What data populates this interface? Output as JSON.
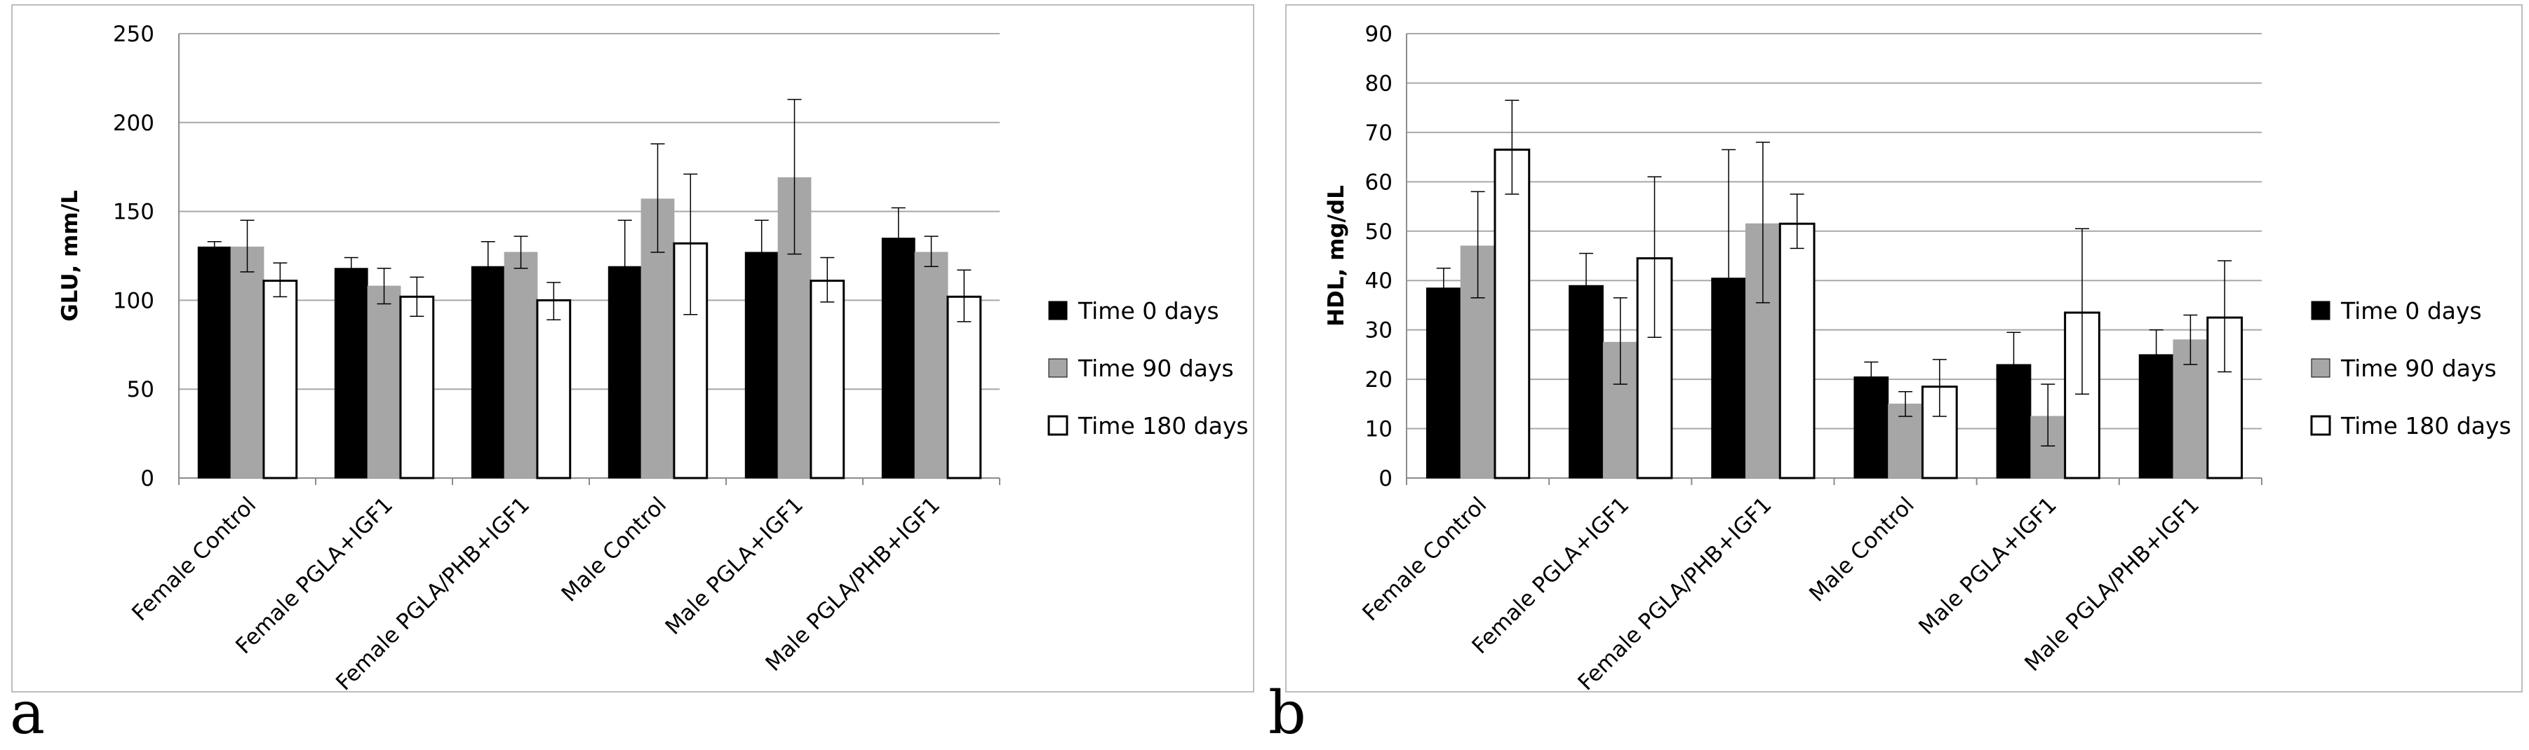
{
  "chart_data": [
    {
      "panel": "a",
      "type": "bar",
      "title": "",
      "xlabel": "",
      "ylabel": "GLU, mm/L",
      "ylim": [
        0,
        250
      ],
      "yticks": [
        0,
        50,
        100,
        150,
        200,
        250
      ],
      "grid": true,
      "legend_position": "right",
      "categories": [
        "Female Control",
        "Female PGLA+IGF1",
        "Female PGLA/PHB+IGF1",
        "Male Control",
        "Male PGLA+IGF1",
        "Male PGLA/PHB+IGF1"
      ],
      "series": [
        {
          "name": "Time 0 days",
          "color": "#000000",
          "values": [
            130,
            118,
            119,
            119,
            127,
            135
          ],
          "err_low": [
            127,
            112,
            106,
            94,
            110,
            120
          ],
          "err_high": [
            133,
            124,
            133,
            145,
            145,
            152
          ]
        },
        {
          "name": "Time 90 days",
          "color": "#a6a6a6",
          "values": [
            130,
            108,
            127,
            157,
            169,
            127
          ],
          "err_low": [
            116,
            98,
            118,
            127,
            126,
            119
          ],
          "err_high": [
            145,
            118,
            136,
            188,
            213,
            136
          ]
        },
        {
          "name": "Time 180 days",
          "color": "#ffffff",
          "values": [
            111,
            102,
            100,
            132,
            111,
            102
          ],
          "err_low": [
            102,
            91,
            89,
            92,
            99,
            88
          ],
          "err_high": [
            121,
            113,
            110,
            171,
            124,
            117
          ]
        }
      ]
    },
    {
      "panel": "b",
      "type": "bar",
      "title": "",
      "xlabel": "",
      "ylabel": "HDL, mg/dL",
      "ylim": [
        0,
        90
      ],
      "yticks": [
        0,
        10,
        20,
        30,
        40,
        50,
        60,
        70,
        80,
        90
      ],
      "grid": true,
      "legend_position": "right",
      "categories": [
        "Female Control",
        "Female PGLA+IGF1",
        "Female PGLA/PHB+IGF1",
        "Male Control",
        "Male PGLA+IGF1",
        "Male PGLA/PHB+IGF1"
      ],
      "series": [
        {
          "name": "Time 0 days",
          "color": "#000000",
          "values": [
            38.5,
            39,
            40.5,
            20.5,
            23,
            25
          ],
          "err_low": [
            34.5,
            32.5,
            15,
            18,
            17,
            21
          ],
          "err_high": [
            42.5,
            45.5,
            66.5,
            23.5,
            29.5,
            30
          ]
        },
        {
          "name": "Time 90 days",
          "color": "#a6a6a6",
          "values": [
            47,
            27.5,
            51.5,
            15,
            12.5,
            28
          ],
          "err_low": [
            36.5,
            19,
            35.5,
            12.5,
            6.5,
            23
          ],
          "err_high": [
            58,
            36.5,
            68,
            17.5,
            19,
            33
          ]
        },
        {
          "name": "Time 180 days",
          "color": "#ffffff",
          "values": [
            66.5,
            44.5,
            51.5,
            18.5,
            33.5,
            32.5
          ],
          "err_low": [
            57.5,
            28.5,
            46.5,
            12.5,
            17,
            21.5
          ],
          "err_high": [
            76.5,
            61,
            57.5,
            24,
            50.5,
            44
          ]
        }
      ]
    }
  ],
  "panel_letters": {
    "a": "a",
    "b": "b"
  }
}
